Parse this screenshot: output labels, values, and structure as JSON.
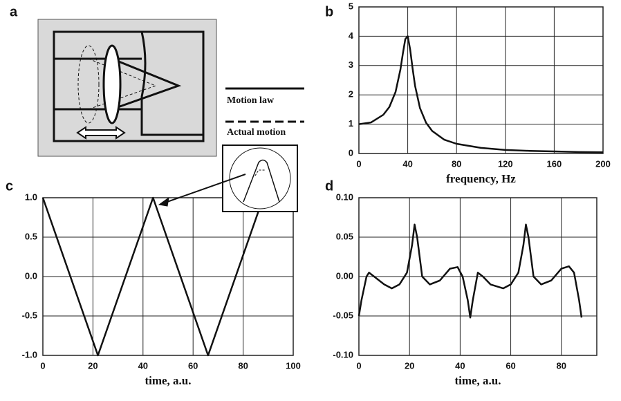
{
  "diagram": {
    "panel_label": "a"
  },
  "legend": [
    "Motion law",
    "Actual motion"
  ],
  "chart_data": [
    {
      "type": "line",
      "panel_label": "b",
      "x_label": "frequency, Hz",
      "x": [
        0,
        10,
        20,
        25,
        30,
        34,
        36,
        38,
        40,
        42,
        44,
        46,
        50,
        55,
        60,
        70,
        80,
        100,
        120,
        140,
        160,
        180,
        200
      ],
      "series": [
        {
          "color": "#111111",
          "values": [
            1,
            1.06,
            1.32,
            1.59,
            2.1,
            2.86,
            3.4,
            3.9,
            4.0,
            3.55,
            2.89,
            2.31,
            1.55,
            1.05,
            0.77,
            0.47,
            0.33,
            0.19,
            0.12,
            0.09,
            0.07,
            0.05,
            0.04
          ]
        }
      ],
      "xlim": [
        0,
        200
      ],
      "ylim": [
        0,
        5
      ],
      "xticks": [
        0,
        40,
        80,
        120,
        160,
        200
      ],
      "yticks": [
        0,
        1,
        2,
        3,
        4,
        5
      ],
      "grid": true
    },
    {
      "type": "line",
      "panel_label": "c",
      "x_label": "time, a.u.",
      "x": [
        0,
        22,
        44,
        66,
        88
      ],
      "series": [
        {
          "color": "#111111",
          "values": [
            1,
            -1,
            1,
            -1,
            1
          ]
        }
      ],
      "xlim": [
        0,
        100
      ],
      "ylim": [
        -1,
        1
      ],
      "xticks": [
        0,
        20,
        40,
        60,
        80,
        100
      ],
      "yticks": [
        {
          "value": 1,
          "label": "1.0"
        },
        {
          "value": 0.5,
          "label": "0.5"
        },
        {
          "value": 0,
          "label": "0.0"
        },
        {
          "value": -0.5,
          "label": "-0.5"
        },
        {
          "value": -1,
          "label": "-1.0"
        }
      ],
      "grid": true
    },
    {
      "type": "line",
      "panel_label": "d",
      "x_label": "time, a.u.",
      "x": [
        0,
        1,
        3,
        4,
        6,
        10,
        13,
        16,
        19,
        21,
        22,
        23,
        25,
        28,
        32,
        36,
        39,
        41,
        43,
        44,
        45,
        47,
        49,
        52,
        57,
        60,
        63,
        65,
        66,
        67,
        69,
        72,
        76,
        80,
        83,
        85,
        87,
        88
      ],
      "series": [
        {
          "color": "#111111",
          "values": [
            -0.05,
            -0.03,
            0.0,
            0.005,
            0.0,
            -0.01,
            -0.015,
            -0.01,
            0.005,
            0.04,
            0.066,
            0.05,
            0.0,
            -0.01,
            -0.005,
            0.01,
            0.012,
            0.0,
            -0.03,
            -0.052,
            -0.03,
            0.005,
            0.0,
            -0.01,
            -0.015,
            -0.01,
            0.005,
            0.04,
            0.066,
            0.05,
            0.0,
            -0.01,
            -0.005,
            0.01,
            0.013,
            0.005,
            -0.03,
            -0.052
          ]
        }
      ],
      "xlim": [
        0,
        94
      ],
      "ylim": [
        -0.1,
        0.1
      ],
      "xticks": [
        0,
        20,
        40,
        60,
        80
      ],
      "yticks": [
        {
          "value": 0.1,
          "label": "0.10"
        },
        {
          "value": 0.05,
          "label": "0.05"
        },
        {
          "value": 0,
          "label": "0.00"
        },
        {
          "value": -0.05,
          "label": "-0.05"
        },
        {
          "value": -0.1,
          "label": "-0.10"
        }
      ],
      "grid": true
    }
  ]
}
